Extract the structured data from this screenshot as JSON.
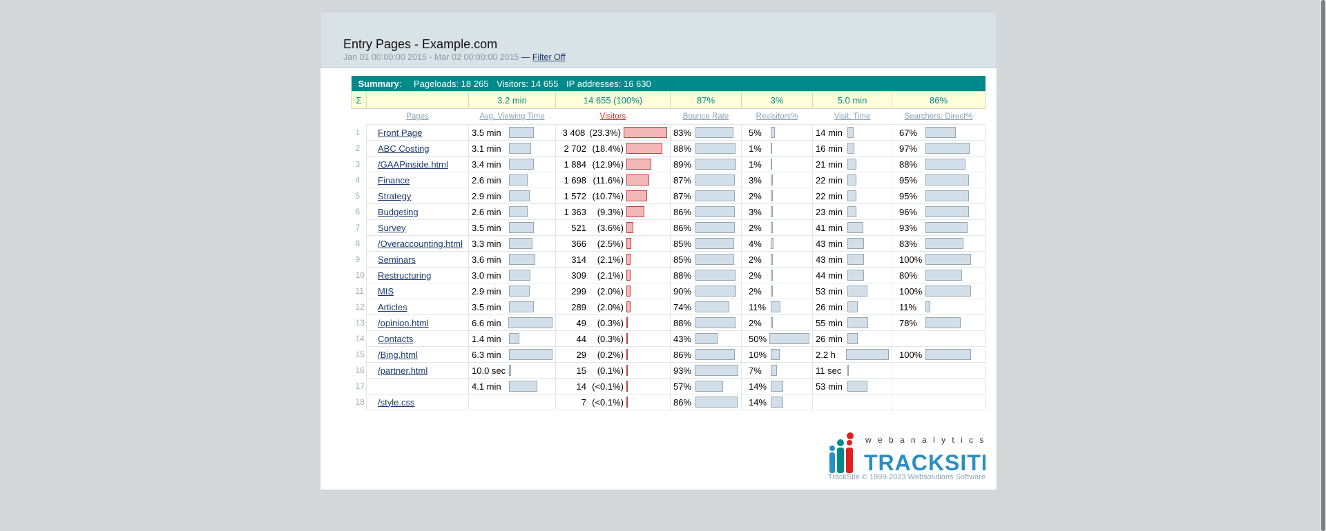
{
  "header": {
    "title": "Entry Pages - Example.com",
    "date_range": "Jan 01 00:00:00 2015 - Mar 02 00:00:00 2015",
    "separator": "—",
    "filter_label": "Filter Off"
  },
  "summary": {
    "label": "Summary",
    "colon": ":",
    "pageloads": "Pageloads: 18 265",
    "visitors": "Visitors: 14 655",
    "ip": "IP addresses: 16 630"
  },
  "totals": {
    "sigma": "Σ",
    "time": "3.2 min",
    "visitors": "14 655 (100%)",
    "bounce": "87%",
    "revisitors": "3%",
    "visit_time": "5.0 min",
    "searchers": "86%"
  },
  "columns": {
    "pages": "Pages",
    "avg_time": "Avg. Viewing Time",
    "visitors": "Visitors",
    "bounce": "Bounce Rate",
    "revisitors": "Revisitors%",
    "visit_time": "Visit: Time",
    "searchers": "Searchers: Direct%"
  },
  "rows": [
    {
      "n": "1",
      "page": "Front Page",
      "time": "3.5 min",
      "time_f": 0.55,
      "vis": "3 408",
      "pct": "(23.3%)",
      "vis_f": 1.0,
      "bounce": "83%",
      "bounce_f": 0.83,
      "rev": "5%",
      "rev_f": 0.09,
      "vtime": "14 min",
      "vtime_f": 0.13,
      "srch": "67%",
      "srch_f": 0.67
    },
    {
      "n": "2",
      "page": "ABC Costing",
      "time": "3.1 min",
      "time_f": 0.49,
      "vis": "2 702",
      "pct": "(18.4%)",
      "vis_f": 0.79,
      "bounce": "88%",
      "bounce_f": 0.88,
      "rev": "1%",
      "rev_f": 0.02,
      "vtime": "16 min",
      "vtime_f": 0.15,
      "srch": "97%",
      "srch_f": 0.97
    },
    {
      "n": "3",
      "page": "/GAAPinside.html",
      "time": "3.4 min",
      "time_f": 0.54,
      "vis": "1 884",
      "pct": "(12.9%)",
      "vis_f": 0.55,
      "bounce": "89%",
      "bounce_f": 0.89,
      "rev": "1%",
      "rev_f": 0.02,
      "vtime": "21 min",
      "vtime_f": 0.19,
      "srch": "88%",
      "srch_f": 0.88
    },
    {
      "n": "4",
      "page": "Finance",
      "time": "2.6 min",
      "time_f": 0.41,
      "vis": "1 698",
      "pct": "(11.6%)",
      "vis_f": 0.5,
      "bounce": "87%",
      "bounce_f": 0.87,
      "rev": "3%",
      "rev_f": 0.05,
      "vtime": "22 min",
      "vtime_f": 0.2,
      "srch": "95%",
      "srch_f": 0.95
    },
    {
      "n": "5",
      "page": "Strategy",
      "time": "2.9 min",
      "time_f": 0.46,
      "vis": "1 572",
      "pct": "(10.7%)",
      "vis_f": 0.46,
      "bounce": "87%",
      "bounce_f": 0.87,
      "rev": "2%",
      "rev_f": 0.04,
      "vtime": "22 min",
      "vtime_f": 0.2,
      "srch": "95%",
      "srch_f": 0.95
    },
    {
      "n": "6",
      "page": "Budgeting",
      "time": "2.6 min",
      "time_f": 0.41,
      "vis": "1 363",
      "pct": "(9.3%)",
      "vis_f": 0.4,
      "bounce": "86%",
      "bounce_f": 0.86,
      "rev": "3%",
      "rev_f": 0.05,
      "vtime": "23 min",
      "vtime_f": 0.2,
      "srch": "96%",
      "srch_f": 0.96
    },
    {
      "n": "7",
      "page": "Survey",
      "time": "3.5 min",
      "time_f": 0.55,
      "vis": "521",
      "pct": "(3.6%)",
      "vis_f": 0.15,
      "bounce": "86%",
      "bounce_f": 0.86,
      "rev": "2%",
      "rev_f": 0.04,
      "vtime": "41 min",
      "vtime_f": 0.35,
      "srch": "93%",
      "srch_f": 0.93
    },
    {
      "n": "8",
      "page": "/Overaccounting.html",
      "time": "3.3 min",
      "time_f": 0.52,
      "vis": "366",
      "pct": "(2.5%)",
      "vis_f": 0.11,
      "bounce": "85%",
      "bounce_f": 0.85,
      "rev": "4%",
      "rev_f": 0.07,
      "vtime": "43 min",
      "vtime_f": 0.36,
      "srch": "83%",
      "srch_f": 0.83
    },
    {
      "n": "9",
      "page": "Seminars",
      "time": "3.6 min",
      "time_f": 0.57,
      "vis": "314",
      "pct": "(2.1%)",
      "vis_f": 0.09,
      "bounce": "85%",
      "bounce_f": 0.85,
      "rev": "2%",
      "rev_f": 0.04,
      "vtime": "43 min",
      "vtime_f": 0.36,
      "srch": "100%",
      "srch_f": 1.0
    },
    {
      "n": "10",
      "page": "Restructuring",
      "time": "3.0 min",
      "time_f": 0.47,
      "vis": "309",
      "pct": "(2.1%)",
      "vis_f": 0.09,
      "bounce": "88%",
      "bounce_f": 0.88,
      "rev": "2%",
      "rev_f": 0.04,
      "vtime": "44 min",
      "vtime_f": 0.37,
      "srch": "80%",
      "srch_f": 0.8
    },
    {
      "n": "11",
      "page": "MIS",
      "time": "2.9 min",
      "time_f": 0.46,
      "vis": "299",
      "pct": "(2.0%)",
      "vis_f": 0.09,
      "bounce": "90%",
      "bounce_f": 0.9,
      "rev": "2%",
      "rev_f": 0.04,
      "vtime": "53 min",
      "vtime_f": 0.44,
      "srch": "100%",
      "srch_f": 1.0
    },
    {
      "n": "12",
      "page": "Articles",
      "time": "3.5 min",
      "time_f": 0.55,
      "vis": "289",
      "pct": "(2.0%)",
      "vis_f": 0.09,
      "bounce": "74%",
      "bounce_f": 0.74,
      "rev": "11%",
      "rev_f": 0.22,
      "vtime": "26 min",
      "vtime_f": 0.23,
      "srch": "11%",
      "srch_f": 0.11
    },
    {
      "n": "13",
      "page": "/opinion.html",
      "time": "6.6 min",
      "time_f": 1.0,
      "vis": "49",
      "pct": "(0.3%)",
      "vis_f": 0.02,
      "bounce": "88%",
      "bounce_f": 0.88,
      "rev": "2%",
      "rev_f": 0.04,
      "vtime": "55 min",
      "vtime_f": 0.45,
      "srch": "78%",
      "srch_f": 0.78
    },
    {
      "n": "14",
      "page": "Contacts",
      "time": "1.4 min",
      "time_f": 0.22,
      "vis": "44",
      "pct": "(0.3%)",
      "vis_f": 0.02,
      "bounce": "43%",
      "bounce_f": 0.48,
      "rev": "50%",
      "rev_f": 1.0,
      "vtime": "26 min",
      "vtime_f": 0.23,
      "srch": "",
      "srch_f": 0
    },
    {
      "n": "15",
      "page": "/Bing.html",
      "time": "6.3 min",
      "time_f": 0.96,
      "vis": "29",
      "pct": "(0.2%)",
      "vis_f": 0.01,
      "bounce": "86%",
      "bounce_f": 0.86,
      "rev": "10%",
      "rev_f": 0.2,
      "vtime": "2.2 h",
      "vtime_f": 1.0,
      "srch": "100%",
      "srch_f": 1.0
    },
    {
      "n": "16",
      "page": "/partner.html",
      "time": "10.0 sec",
      "time_f": 0.05,
      "vis": "15",
      "pct": "(0.1%)",
      "vis_f": 0.01,
      "bounce": "93%",
      "bounce_f": 1.0,
      "rev": "7%",
      "rev_f": 0.14,
      "vtime": "11 sec",
      "vtime_f": 0.01,
      "srch": "",
      "srch_f": 0
    },
    {
      "n": "17",
      "page": "",
      "time": "4.1 min",
      "time_f": 0.62,
      "vis": "14",
      "pct": "(<0.1%)",
      "vis_f": 0.01,
      "bounce": "57%",
      "bounce_f": 0.6,
      "rev": "14%",
      "rev_f": 0.28,
      "vtime": "53 min",
      "vtime_f": 0.44,
      "srch": "",
      "srch_f": 0
    },
    {
      "n": "18",
      "page": "/style.css",
      "time": "",
      "time_f": 0,
      "vis": "7",
      "pct": "(<0.1%)",
      "vis_f": 0.005,
      "bounce": "86%",
      "bounce_f": 0.92,
      "rev": "14%",
      "rev_f": 0.28,
      "vtime": "",
      "vtime_f": 0,
      "srch": "",
      "srch_f": 0
    }
  ],
  "footer": {
    "logo_text_top": "w e b   a n a l y t i c s",
    "logo_text_main": "TRACKSITE",
    "copyright": "TrackSite © 1999-2023 Websolutions Software",
    "colors": {
      "teal": "#008a8a",
      "red": "#e02020",
      "blue": "#2a8fc4"
    }
  }
}
